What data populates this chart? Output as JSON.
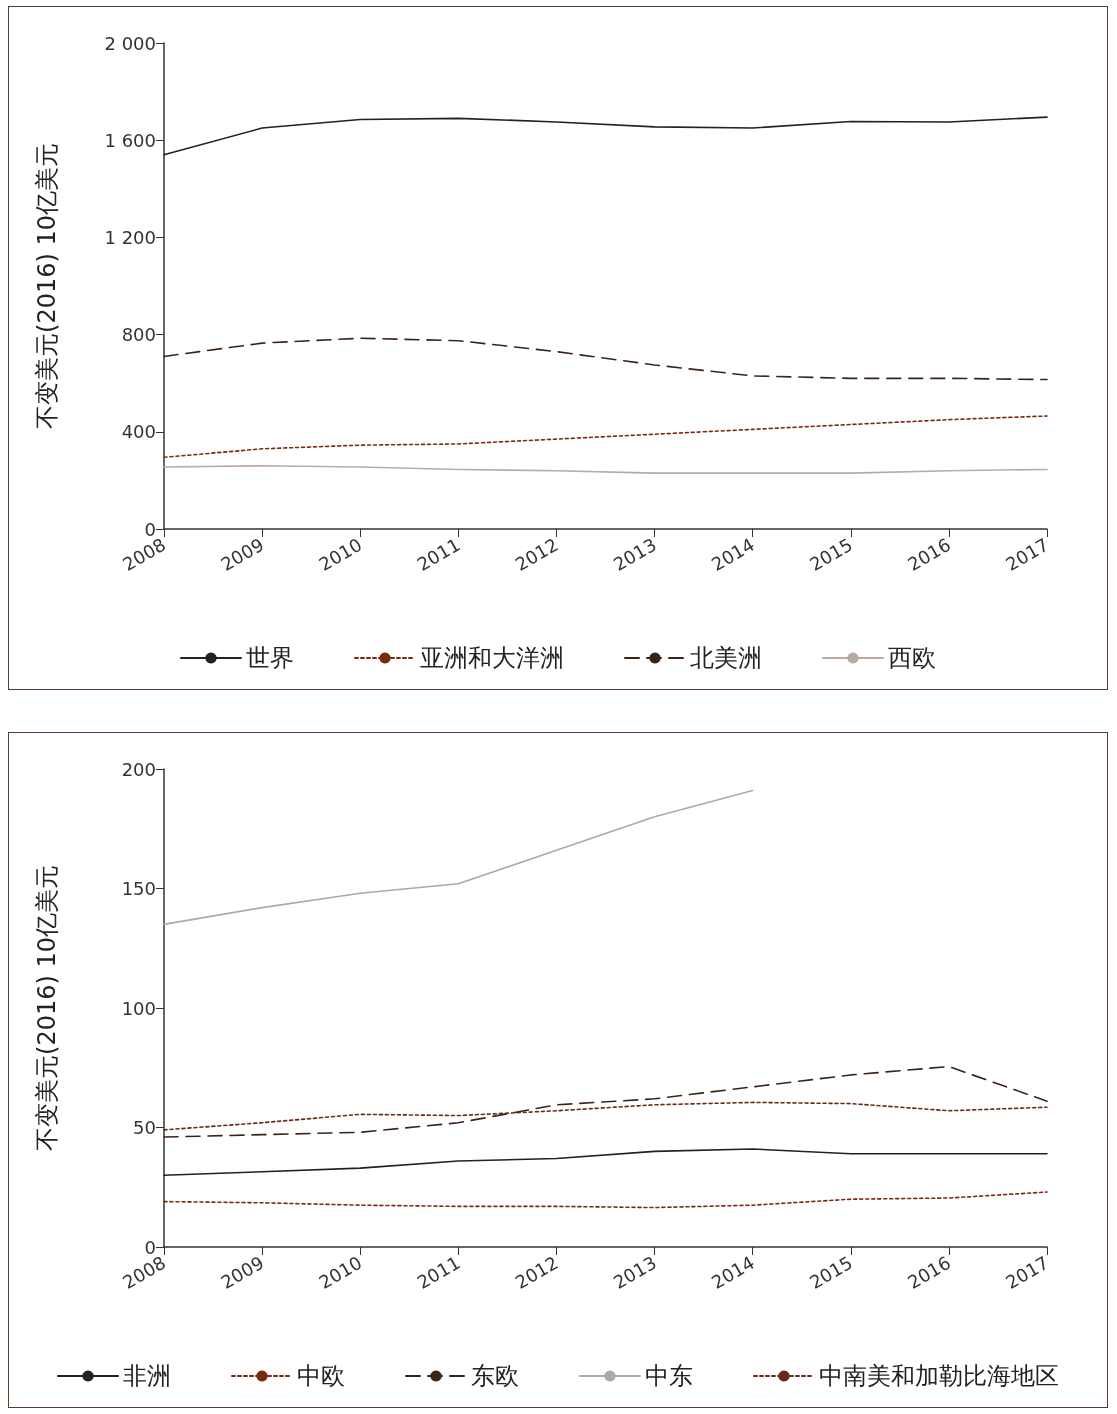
{
  "chart_data": [
    {
      "type": "line",
      "ylabel": "不变美元(2016) 10亿美元",
      "categories": [
        "2008",
        "2009",
        "2010",
        "2011",
        "2012",
        "2013",
        "2014",
        "2015",
        "2016",
        "2017"
      ],
      "ylim": [
        0,
        2000
      ],
      "yticks": [
        0,
        {
          "value": 400,
          "label": "400"
        },
        {
          "value": 800,
          "label": "800"
        },
        {
          "value": 1200,
          "label": "1 200"
        },
        {
          "value": 1600,
          "label": "1 600"
        },
        {
          "value": 2000,
          "label": "2 000"
        }
      ],
      "grid": false,
      "legend": "bottom",
      "marker": "none",
      "series": [
        {
          "name": "世界",
          "color": "#222222",
          "line_style": "solid",
          "values": [
            1540,
            1650,
            1685,
            1690,
            1675,
            1655,
            1650,
            1677,
            1675,
            1695
          ]
        },
        {
          "name": "亚洲和大洋洲",
          "color": "#7a2a10",
          "line_style": "dotted",
          "values": [
            295,
            330,
            345,
            350,
            370,
            390,
            410,
            430,
            450,
            465
          ]
        },
        {
          "name": "北美洲",
          "color": "#3a2418",
          "line_style": "dashed",
          "values": [
            710,
            765,
            785,
            775,
            730,
            675,
            630,
            620,
            620,
            615
          ]
        },
        {
          "name": "西欧",
          "color": "#bbaaa0",
          "line_style": "solid",
          "values": [
            255,
            260,
            255,
            245,
            240,
            230,
            230,
            230,
            240,
            245
          ]
        }
      ]
    },
    {
      "type": "line",
      "ylabel": "不变美元(2016) 10亿美元",
      "categories": [
        "2008",
        "2009",
        "2010",
        "2011",
        "2012",
        "2013",
        "2014",
        "2015",
        "2016",
        "2017"
      ],
      "ylim": [
        0,
        200
      ],
      "yticks": [
        0,
        50,
        100,
        150,
        200
      ],
      "grid": false,
      "legend": "bottom",
      "marker": "none",
      "series": [
        {
          "name": "非洲",
          "color": "#222222",
          "line_style": "solid",
          "values": [
            30,
            31.5,
            33,
            36,
            37,
            40,
            41,
            39,
            39,
            39
          ]
        },
        {
          "name": "中欧",
          "color": "#7a2a10",
          "line_style": "dotted",
          "values": [
            19,
            18.5,
            17.5,
            17,
            17,
            16.5,
            17.5,
            20,
            20.5,
            23
          ]
        },
        {
          "name": "东欧",
          "color": "#3a2418",
          "line_style": "dashed",
          "values": [
            46,
            47,
            48,
            52,
            59.5,
            62,
            67,
            72,
            75.5,
            61
          ]
        },
        {
          "name": "中东",
          "color": "#aaaaaa",
          "line_style": "solid",
          "values": [
            135,
            142,
            148,
            152,
            166,
            180,
            191,
            null,
            null,
            null
          ]
        },
        {
          "name": "中南美和加勒比海地区",
          "color": "#6a2a14",
          "line_style": "dotted",
          "values": [
            49,
            52,
            55.5,
            55,
            57,
            59.5,
            60.5,
            60,
            57,
            58.5
          ]
        }
      ]
    }
  ]
}
